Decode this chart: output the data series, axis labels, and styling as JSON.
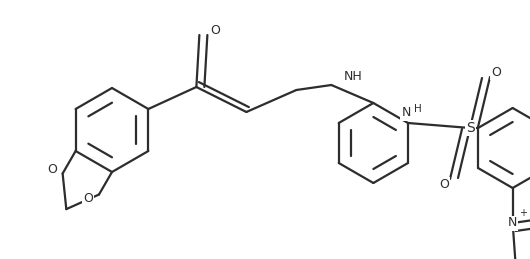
{
  "bg_color": "#ffffff",
  "line_color": "#2d2d2d",
  "line_width": 1.6,
  "font_size": 9,
  "font_color": "#2d2d2d",
  "figsize": [
    5.3,
    2.59
  ],
  "dpi": 100,
  "xlim": [
    0,
    5.3
  ],
  "ylim": [
    0,
    2.59
  ]
}
